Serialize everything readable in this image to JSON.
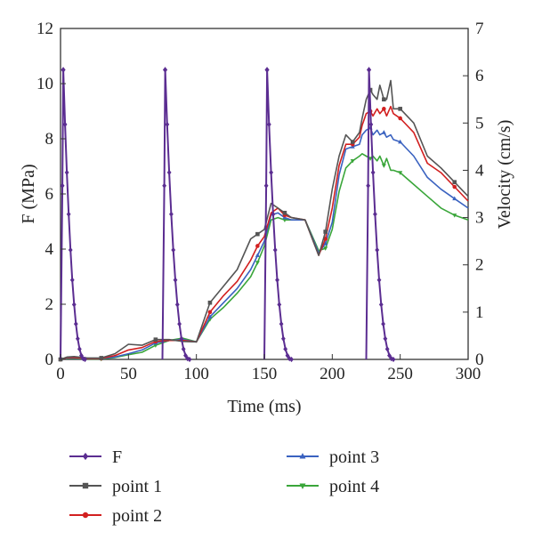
{
  "chart_data": {
    "type": "line",
    "xlabel": "Time (ms)",
    "ylabel_left": "F (MPa)",
    "ylabel_right": "Velocity (cm/s)",
    "xlim": [
      0,
      300
    ],
    "ylim_left": [
      0,
      12
    ],
    "ylim_right": [
      0,
      7
    ],
    "x_ticks": [
      "0",
      "50",
      "100",
      "150",
      "200",
      "250",
      "300"
    ],
    "y_left_ticks": [
      "0",
      "2",
      "4",
      "6",
      "8",
      "10",
      "12"
    ],
    "y_right_ticks": [
      "0",
      "1",
      "2",
      "3",
      "4",
      "5",
      "6",
      "7"
    ],
    "grid": false,
    "legend_placement": "bottom",
    "series": [
      {
        "name": "F",
        "axis": "left",
        "color": "#5b2d91",
        "marker": "diamond",
        "pulses": [
          {
            "start": 0,
            "peak_time": 2,
            "peak": 10.5,
            "end": 18
          },
          {
            "start": 75,
            "peak_time": 77,
            "peak": 10.5,
            "end": 95
          },
          {
            "start": 150,
            "peak_time": 152,
            "peak": 10.5,
            "end": 170
          },
          {
            "start": 225,
            "peak_time": 227,
            "peak": 10.5,
            "end": 245
          }
        ]
      },
      {
        "name": "point 1",
        "axis": "right",
        "color": "#555555",
        "marker": "square",
        "x": [
          0,
          5,
          10,
          20,
          30,
          40,
          50,
          60,
          70,
          80,
          90,
          100,
          110,
          120,
          130,
          140,
          145,
          150,
          155,
          160,
          165,
          170,
          180,
          190,
          195,
          200,
          205,
          210,
          215,
          220,
          222,
          225,
          228,
          230,
          233,
          235,
          238,
          240,
          243,
          245,
          250,
          260,
          270,
          280,
          290,
          300
        ],
        "y": [
          0,
          0.05,
          0.06,
          0.03,
          0.03,
          0.12,
          0.32,
          0.3,
          0.42,
          0.42,
          0.38,
          0.37,
          1.2,
          1.55,
          1.9,
          2.55,
          2.65,
          2.75,
          3.3,
          3.2,
          3.1,
          3.0,
          2.95,
          2.2,
          2.7,
          3.6,
          4.3,
          4.75,
          4.6,
          4.8,
          5.1,
          5.5,
          5.7,
          5.6,
          5.5,
          5.8,
          5.5,
          5.5,
          5.9,
          5.3,
          5.3,
          5.0,
          4.3,
          4.05,
          3.75,
          3.45
        ]
      },
      {
        "name": "point 2",
        "axis": "right",
        "color": "#d22020",
        "marker": "circle",
        "x": [
          0,
          5,
          10,
          20,
          30,
          40,
          50,
          60,
          70,
          80,
          90,
          100,
          110,
          120,
          130,
          140,
          145,
          150,
          155,
          160,
          165,
          170,
          180,
          190,
          195,
          200,
          205,
          210,
          215,
          220,
          222,
          225,
          228,
          230,
          233,
          235,
          238,
          240,
          243,
          245,
          250,
          260,
          270,
          280,
          290,
          300
        ],
        "y": [
          0,
          0.04,
          0.04,
          0.02,
          0.02,
          0.08,
          0.2,
          0.25,
          0.38,
          0.4,
          0.4,
          0.37,
          1.0,
          1.35,
          1.65,
          2.1,
          2.4,
          2.6,
          3.1,
          3.2,
          3.05,
          3.0,
          2.95,
          2.2,
          2.55,
          3.2,
          4.1,
          4.55,
          4.55,
          4.7,
          4.95,
          5.2,
          5.25,
          5.15,
          5.3,
          5.2,
          5.3,
          5.15,
          5.35,
          5.2,
          5.1,
          4.8,
          4.15,
          3.95,
          3.65,
          3.35
        ]
      },
      {
        "name": "point 3",
        "axis": "right",
        "color": "#3a62c0",
        "marker": "triangle",
        "x": [
          0,
          5,
          10,
          20,
          30,
          40,
          50,
          60,
          70,
          80,
          90,
          100,
          110,
          120,
          130,
          140,
          145,
          150,
          155,
          160,
          165,
          170,
          180,
          190,
          195,
          200,
          205,
          210,
          215,
          220,
          222,
          225,
          228,
          230,
          233,
          235,
          238,
          240,
          243,
          245,
          250,
          260,
          270,
          280,
          290,
          300
        ],
        "y": [
          0,
          0.03,
          0.03,
          0.02,
          0.02,
          0.05,
          0.12,
          0.2,
          0.35,
          0.4,
          0.42,
          0.37,
          0.9,
          1.2,
          1.5,
          1.9,
          2.2,
          2.5,
          3.05,
          3.1,
          3.0,
          2.95,
          2.95,
          2.25,
          2.45,
          2.9,
          3.9,
          4.45,
          4.5,
          4.55,
          4.75,
          4.85,
          4.9,
          4.75,
          4.85,
          4.75,
          4.8,
          4.7,
          4.75,
          4.65,
          4.6,
          4.3,
          3.85,
          3.6,
          3.4,
          3.2
        ]
      },
      {
        "name": "point 4",
        "axis": "right",
        "color": "#3aa63a",
        "marker": "triangle-down",
        "x": [
          0,
          5,
          10,
          20,
          30,
          40,
          50,
          60,
          70,
          80,
          90,
          100,
          110,
          120,
          130,
          140,
          145,
          150,
          155,
          160,
          165,
          170,
          180,
          190,
          195,
          200,
          205,
          210,
          215,
          220,
          222,
          225,
          228,
          230,
          233,
          235,
          238,
          240,
          243,
          245,
          250,
          260,
          270,
          280,
          290,
          300
        ],
        "y": [
          0,
          0.02,
          0.02,
          0.01,
          0.01,
          0.04,
          0.1,
          0.15,
          0.3,
          0.4,
          0.45,
          0.37,
          0.85,
          1.1,
          1.4,
          1.75,
          2.05,
          2.4,
          2.95,
          3.0,
          2.95,
          2.95,
          2.95,
          2.3,
          2.35,
          2.75,
          3.55,
          4.05,
          4.2,
          4.3,
          4.35,
          4.3,
          4.25,
          4.3,
          4.2,
          4.3,
          4.1,
          4.25,
          4.0,
          4.0,
          3.95,
          3.7,
          3.45,
          3.2,
          3.05,
          2.95
        ]
      }
    ]
  }
}
